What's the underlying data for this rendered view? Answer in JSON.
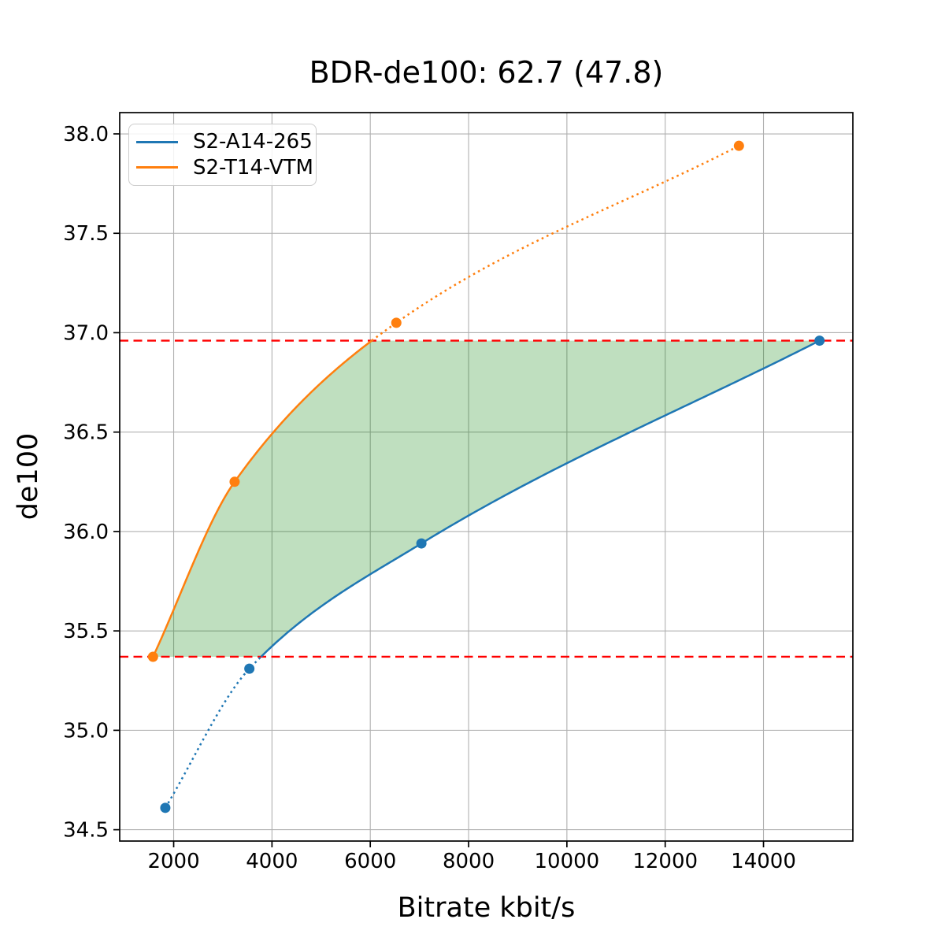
{
  "chart_data": {
    "type": "line",
    "title": "BDR-de100: 62.7 (47.8)",
    "xlabel": "Bitrate kbit/s",
    "ylabel": "de100",
    "xlim": [
      902,
      15818
    ],
    "ylim": [
      34.443,
      38.107
    ],
    "xticks": [
      2000,
      4000,
      6000,
      8000,
      10000,
      12000,
      14000
    ],
    "xtick_labels": [
      "2000",
      "4000",
      "6000",
      "8000",
      "10000",
      "12000",
      "14000"
    ],
    "yticks": [
      34.5,
      35.0,
      35.5,
      36.0,
      36.5,
      37.0,
      37.5,
      38.0
    ],
    "ytick_labels": [
      "34.5",
      "35.0",
      "35.5",
      "36.0",
      "36.5",
      "37.0",
      "37.5",
      "38.0"
    ],
    "grid": true,
    "grid_color": "#b0b0b0",
    "legend_position": "upper-left",
    "series": [
      {
        "name": "S2-A14-265",
        "color": "#1f77b4",
        "x": [
          1830,
          3540,
          7040,
          15140
        ],
        "y": [
          34.61,
          35.31,
          35.94,
          36.96
        ]
      },
      {
        "name": "S2-T14-VTM",
        "color": "#ff7f0e",
        "x": [
          1580,
          3240,
          6530,
          13500
        ],
        "y": [
          35.37,
          36.25,
          37.05,
          37.94
        ]
      }
    ],
    "overlap_lines": {
      "style": "dashed",
      "color": "#ff0000",
      "low": 35.37,
      "high": 36.96
    },
    "shaded_region": {
      "color": "#008000",
      "opacity": 0.25,
      "description": "area between the two rate-distortion curves clipped to the overlap interval"
    }
  }
}
